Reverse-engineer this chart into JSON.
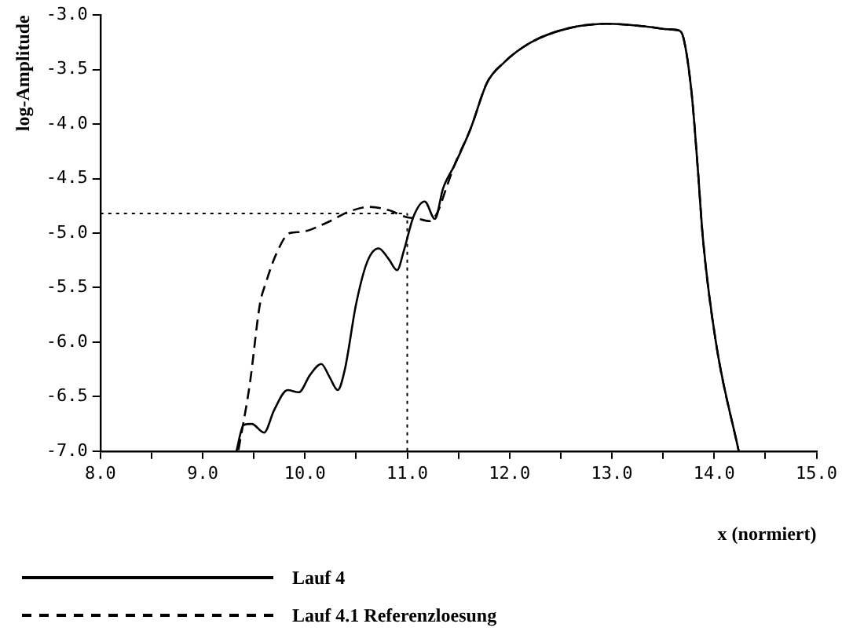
{
  "chart_data": {
    "type": "line",
    "xlabel": "x (normiert)",
    "ylabel": "log-Amplitude",
    "xlim": [
      8,
      15
    ],
    "ylim": [
      -7,
      -3
    ],
    "xticks": [
      {
        "value": 8,
        "label": "8.0"
      },
      {
        "value": 8.5,
        "label": null
      },
      {
        "value": 9,
        "label": "9.0"
      },
      {
        "value": 9.5,
        "label": null
      },
      {
        "value": 10,
        "label": "10.0"
      },
      {
        "value": 10.5,
        "label": null
      },
      {
        "value": 11,
        "label": "11.0"
      },
      {
        "value": 11.5,
        "label": null
      },
      {
        "value": 12,
        "label": "12.0"
      },
      {
        "value": 12.5,
        "label": null
      },
      {
        "value": 13,
        "label": "13.0"
      },
      {
        "value": 13.5,
        "label": null
      },
      {
        "value": 14,
        "label": "14.0"
      },
      {
        "value": 14.5,
        "label": null
      },
      {
        "value": 15,
        "label": "15.0"
      }
    ],
    "yticks": [
      {
        "value": -7,
        "label": "-7.0"
      },
      {
        "value": -6.5,
        "label": "-6.5"
      },
      {
        "value": -6,
        "label": "-6.0"
      },
      {
        "value": -5.5,
        "label": "-5.5"
      },
      {
        "value": -5,
        "label": "-5.0"
      },
      {
        "value": -4.5,
        "label": "-4.5"
      },
      {
        "value": -4,
        "label": "-4.0"
      },
      {
        "value": -3.5,
        "label": "-3.5"
      },
      {
        "value": -3,
        "label": "-3.0"
      }
    ],
    "grid": false,
    "legend": "bottom left",
    "marker": "none",
    "ref_lines": [
      {
        "axis": "y",
        "value": -4.82,
        "line_style": "dotted",
        "color": "#000000"
      },
      {
        "axis": "x",
        "value": 11,
        "line_style": "dotted",
        "color": "#000000"
      }
    ],
    "series": [
      {
        "name": "Lauf 4",
        "color": "#000000",
        "line_style": "solid",
        "x": [
          9.33,
          9.4,
          9.48,
          9.6,
          9.7,
          9.83,
          9.94,
          10.05,
          10.16,
          10.24,
          10.32,
          10.39,
          10.5,
          10.61,
          10.72,
          10.82,
          10.9,
          10.97,
          11.06,
          11.17,
          11.27,
          11.35,
          11.46,
          11.62,
          11.78,
          11.94,
          12.21,
          12.58,
          12.95,
          13.38,
          13.54,
          13.65,
          13.7,
          13.78,
          13.84,
          13.89,
          14.02,
          14.24
        ],
        "values": [
          -7,
          -6.76,
          -6.75,
          -6.83,
          -6.62,
          -6.44,
          -6.46,
          -6.3,
          -6.2,
          -6.32,
          -6.44,
          -6.25,
          -5.65,
          -5.26,
          -5.14,
          -5.24,
          -5.34,
          -5.15,
          -4.85,
          -4.71,
          -4.87,
          -4.59,
          -4.38,
          -4.04,
          -3.62,
          -3.44,
          -3.25,
          -3.12,
          -3.08,
          -3.11,
          -3.13,
          -3.14,
          -3.21,
          -3.72,
          -4.41,
          -5.05,
          -6.02,
          -7
        ]
      },
      {
        "name": "Lauf 4.1 Referenzloesung",
        "color": "#000000",
        "line_style": "dashed",
        "x": [
          9.35,
          9.46,
          9.56,
          9.62,
          9.72,
          9.85,
          9.96,
          10.2,
          10.44,
          10.63,
          10.82,
          10.98,
          11.11,
          11.22,
          11.3,
          11.38,
          11.46,
          11.62,
          11.78,
          11.94,
          12.21,
          12.58,
          12.95,
          13.38,
          13.54,
          13.65,
          13.7,
          13.78,
          13.84,
          13.89,
          14.02,
          14.24
        ],
        "values": [
          -6.99,
          -6.39,
          -5.65,
          -5.45,
          -5.19,
          -5,
          -4.99,
          -4.91,
          -4.8,
          -4.76,
          -4.79,
          -4.85,
          -4.87,
          -4.89,
          -4.8,
          -4.59,
          -4.38,
          -4.04,
          -3.62,
          -3.44,
          -3.25,
          -3.12,
          -3.08,
          -3.11,
          -3.13,
          -3.14,
          -3.21,
          -3.72,
          -4.41,
          -5.05,
          -6.02,
          -7
        ]
      }
    ]
  }
}
